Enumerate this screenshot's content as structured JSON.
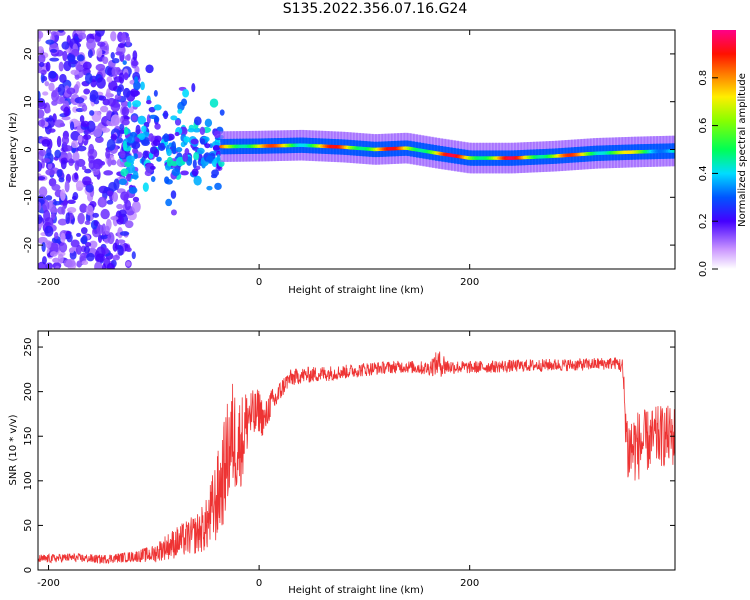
{
  "title": "S135.2022.356.07.16.G24",
  "chart_data": [
    {
      "type": "heatmap",
      "xlabel": "Height of straight line (km)",
      "ylabel": "Frequency (Hz)",
      "xlim": [
        -210,
        395
      ],
      "ylim": [
        -25,
        25
      ],
      "xticks": [
        -200,
        0,
        200
      ],
      "yticks": [
        -20,
        -10,
        0,
        10,
        20
      ],
      "colorbar": {
        "label": "Normalized spectral amplitude",
        "range": [
          0,
          1
        ],
        "ticks": [
          "0.0",
          "0.2",
          "0.4",
          "0.6",
          "0.8"
        ]
      },
      "ridge": {
        "x": [
          -35,
          0,
          40,
          80,
          110,
          140,
          170,
          200,
          240,
          280,
          320,
          360,
          395
        ],
        "y": [
          0.6,
          0.7,
          0.9,
          0.5,
          0,
          0.3,
          -0.8,
          -1.8,
          -1.8,
          -1.4,
          -0.8,
          -0.5,
          -0.3
        ],
        "amplitude": [
          0.9,
          0.9,
          0.8,
          0.95,
          0.95,
          0.9,
          0.95,
          0.95,
          0.95,
          0.9,
          0.85,
          0.7,
          0.6
        ]
      }
    },
    {
      "type": "line",
      "xlabel": "Height of straight line (km)",
      "ylabel": "SNR (10 * v/v)",
      "xlim": [
        -210,
        395
      ],
      "ylim": [
        0,
        268
      ],
      "xticks": [
        -200,
        0,
        200
      ],
      "yticks": [
        0,
        50,
        100,
        150,
        200,
        250
      ],
      "color": "#ee3333",
      "series": [
        {
          "x": [
            -210,
            -180,
            -150,
            -120,
            -100,
            -90,
            -80,
            -70,
            -60,
            -50,
            -45,
            -40,
            -35,
            -30,
            -25,
            -20,
            -15,
            -10,
            -5,
            0,
            5,
            10,
            15,
            20,
            25,
            30,
            40,
            60,
            80,
            100,
            120,
            140,
            160,
            170,
            175,
            180,
            200,
            220,
            250,
            280,
            300,
            320,
            340,
            345,
            350,
            360,
            370,
            380,
            395
          ],
          "y": [
            12,
            14,
            12,
            15,
            18,
            25,
            30,
            35,
            40,
            50,
            65,
            80,
            100,
            130,
            150,
            140,
            150,
            175,
            170,
            180,
            165,
            185,
            190,
            200,
            210,
            215,
            218,
            220,
            222,
            225,
            227,
            228,
            226,
            232,
            230,
            228,
            227,
            228,
            229,
            230,
            230,
            231,
            232,
            228,
            135,
            140,
            145,
            150,
            150
          ],
          "spread": [
            10,
            10,
            10,
            12,
            20,
            28,
            35,
            40,
            45,
            60,
            80,
            100,
            110,
            120,
            130,
            110,
            100,
            70,
            60,
            50,
            40,
            35,
            30,
            25,
            20,
            20,
            18,
            18,
            16,
            16,
            14,
            14,
            16,
            30,
            28,
            16,
            14,
            14,
            14,
            14,
            14,
            14,
            14,
            20,
            90,
            80,
            70,
            70,
            70
          ]
        }
      ]
    }
  ]
}
